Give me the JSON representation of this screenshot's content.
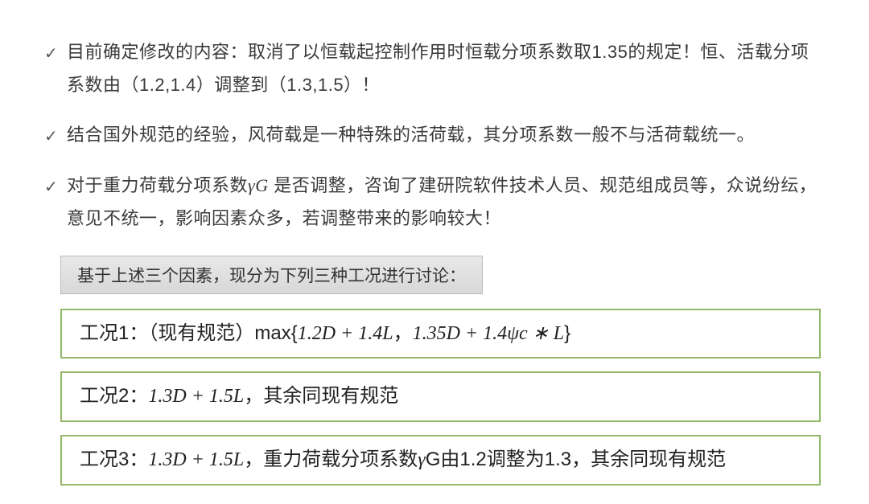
{
  "bullets": {
    "b1": "目前确定修改的内容：取消了以恒载起控制作用时恒载分项系数取1.35的规定！恒、活载分项系数由（1.2,1.4）调整到（1.3,1.5）！",
    "b2": "结合国外规范的经验，风荷载是一种特殊的活荷载，其分项系数一般不与活荷载统一。",
    "b3_a": "对于重力荷载分项系数",
    "b3_gamma": "γ",
    "b3_sub": "G",
    "b3_b": " 是否调整，咨询了建研院软件技术人员、规范组成员等，众说纷纭，意见不统一，影响因素众多，若调整带来的影响较大！"
  },
  "sub_header": "基于上述三个因素，现分为下列三种工况进行讨论：",
  "cases": {
    "c1_lead": "工况1：（现有规范）max{",
    "c1_f1": "1.2D + 1.4L",
    "c1_sep": "，",
    "c1_f2a": "1.35D + 1.4ψ",
    "c1_f2_sub": "c",
    "c1_f2b": " ∗ L",
    "c1_close": "}",
    "c2_lead": "工况2：",
    "c2_formula": "1.3D + 1.5L",
    "c2_tail": "，其余同现有规范",
    "c3_lead": "工况3：",
    "c3_formula": "1.3D + 1.5L",
    "c3_mid": "，重力荷载分项系数",
    "c3_gamma": "γ",
    "c3_sub": "G",
    "c3_tail": "由1.2调整为1.3，其余同现有规范"
  },
  "colors": {
    "border_green": "#93b86a",
    "text": "#3a3a3a",
    "subbox_bg_top": "#e8e8e8",
    "subbox_bg_bottom": "#d8d8d8",
    "subbox_border": "#bbbbbb",
    "background": "#ffffff"
  }
}
